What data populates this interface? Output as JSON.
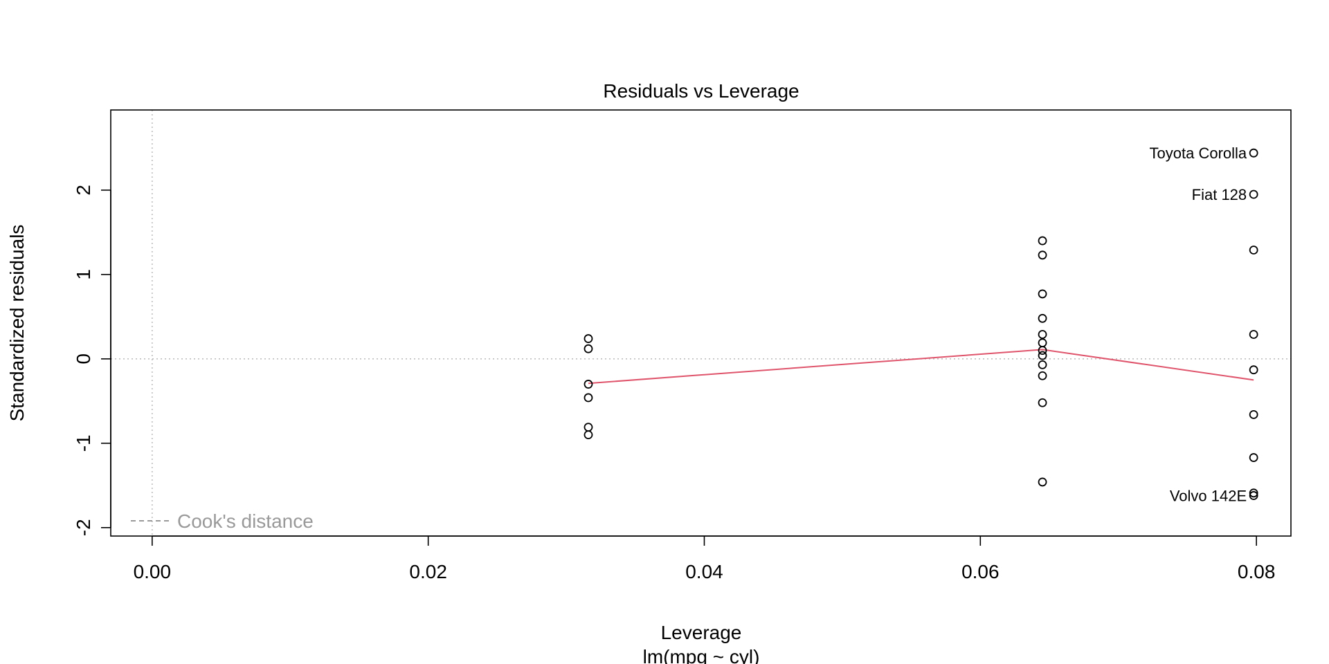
{
  "chart_data": {
    "type": "scatter",
    "title": "Residuals vs Leverage",
    "xlabel": "Leverage",
    "subtitle": "lm(mpg ~ cyl)",
    "ylabel": "Standardized residuals",
    "xlim": [
      -0.003,
      0.0825
    ],
    "ylim": [
      -2.1,
      2.95
    ],
    "x_ticks": [
      {
        "value": 0.0,
        "label": "0.00"
      },
      {
        "value": 0.02,
        "label": "0.02"
      },
      {
        "value": 0.04,
        "label": "0.04"
      },
      {
        "value": 0.06,
        "label": "0.06"
      },
      {
        "value": 0.08,
        "label": "0.08"
      }
    ],
    "y_ticks": [
      {
        "value": -2,
        "label": "-2"
      },
      {
        "value": -1,
        "label": "-1"
      },
      {
        "value": 0,
        "label": "0"
      },
      {
        "value": 1,
        "label": "1"
      },
      {
        "value": 2,
        "label": "2"
      }
    ],
    "points": [
      {
        "x": 0.0316,
        "y": 0.24
      },
      {
        "x": 0.0316,
        "y": 0.12
      },
      {
        "x": 0.0316,
        "y": -0.3
      },
      {
        "x": 0.0316,
        "y": -0.46
      },
      {
        "x": 0.0316,
        "y": -0.81
      },
      {
        "x": 0.0316,
        "y": -0.9
      },
      {
        "x": 0.0645,
        "y": 1.4
      },
      {
        "x": 0.0645,
        "y": 1.23
      },
      {
        "x": 0.0645,
        "y": 0.77
      },
      {
        "x": 0.0645,
        "y": 0.48
      },
      {
        "x": 0.0645,
        "y": 0.29
      },
      {
        "x": 0.0645,
        "y": 0.19
      },
      {
        "x": 0.0645,
        "y": 0.1
      },
      {
        "x": 0.0645,
        "y": 0.04
      },
      {
        "x": 0.0645,
        "y": -0.07
      },
      {
        "x": 0.0645,
        "y": -0.2
      },
      {
        "x": 0.0645,
        "y": -0.52
      },
      {
        "x": 0.0645,
        "y": -1.46
      },
      {
        "x": 0.0798,
        "y": 2.44
      },
      {
        "x": 0.0798,
        "y": 1.95
      },
      {
        "x": 0.0798,
        "y": 1.29
      },
      {
        "x": 0.0798,
        "y": 0.29
      },
      {
        "x": 0.0798,
        "y": -0.13
      },
      {
        "x": 0.0798,
        "y": -0.66
      },
      {
        "x": 0.0798,
        "y": -1.17
      },
      {
        "x": 0.0798,
        "y": -1.59
      },
      {
        "x": 0.0798,
        "y": -1.62
      }
    ],
    "labeled_points": [
      {
        "x": 0.0798,
        "y": 2.44,
        "label": "Toyota Corolla"
      },
      {
        "x": 0.0798,
        "y": 1.95,
        "label": "Fiat 128"
      },
      {
        "x": 0.0798,
        "y": -1.62,
        "label": "Volvo 142E"
      }
    ],
    "smooth_line": {
      "color": "#DF536B",
      "points": [
        {
          "x": 0.0316,
          "y": -0.29
        },
        {
          "x": 0.0645,
          "y": 0.11
        },
        {
          "x": 0.0798,
          "y": -0.25
        }
      ]
    },
    "reference_lines": {
      "h": 0,
      "v": 0,
      "color": "#BEBEBE"
    },
    "legend": {
      "position": "bottom-left",
      "label": "Cook's distance",
      "color": "#999999"
    },
    "grid": false
  }
}
